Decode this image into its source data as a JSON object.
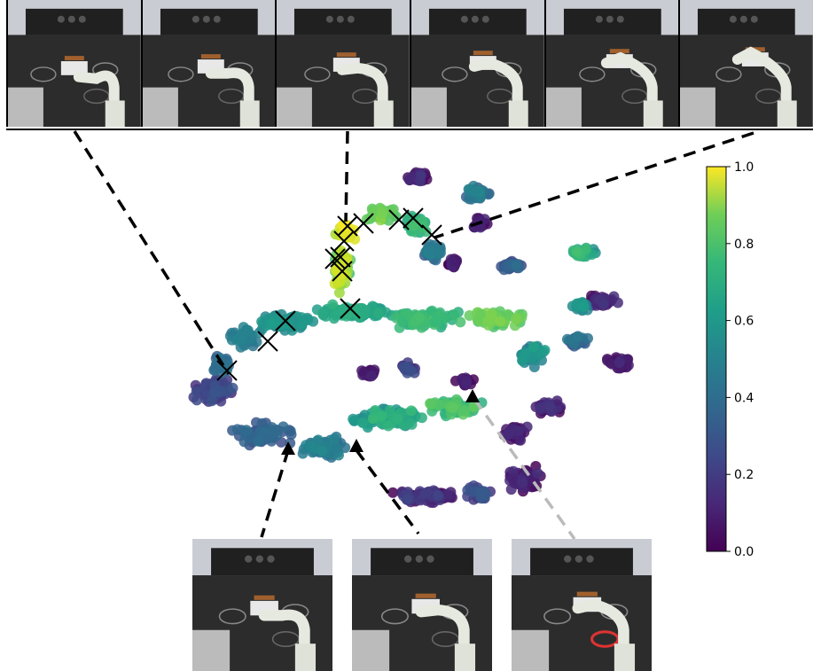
{
  "chart_data": {
    "type": "scatter",
    "title": "",
    "xlabel": "",
    "ylabel": "",
    "colormap": "viridis",
    "colorbar": {
      "range": [
        0.0,
        1.0
      ],
      "ticks": [
        "1.0",
        "0.8",
        "0.6",
        "0.4",
        "0.2",
        "0.0"
      ]
    },
    "marker_groups": [
      {
        "marker": "x",
        "color": "#000000",
        "count": 13
      },
      {
        "marker": "triangle",
        "color": "#000000",
        "count": 3
      }
    ],
    "thumbnails_top": 6,
    "thumbnails_bottom": 3,
    "colors": {
      "viridis_low": "#440154",
      "viridis_mid": "#21918c",
      "viridis_high": "#fde725",
      "connector_dark": "#000000",
      "connector_light": "#bbbbbb"
    }
  }
}
